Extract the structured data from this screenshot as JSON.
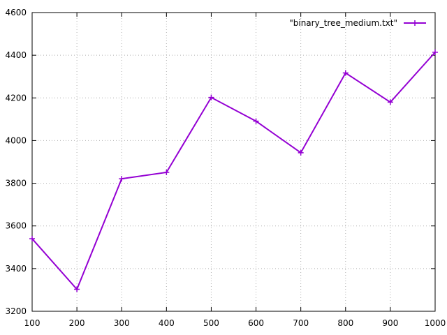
{
  "chart_data": {
    "type": "line",
    "title": "",
    "xlabel": "",
    "ylabel": "",
    "xlim": [
      100,
      1000
    ],
    "ylim": [
      3200,
      4600
    ],
    "x_ticks": [
      100,
      200,
      300,
      400,
      500,
      600,
      700,
      800,
      900,
      1000
    ],
    "y_ticks": [
      3200,
      3400,
      3600,
      3800,
      4000,
      4200,
      4400,
      4600
    ],
    "grid": true,
    "legend_position": "top-right",
    "series": [
      {
        "name": "\"binary_tree_medium.txt\"",
        "color": "#9400d3",
        "marker": "plus",
        "x": [
          100,
          200,
          300,
          400,
          500,
          600,
          700,
          800,
          900,
          1000
        ],
        "y": [
          3540,
          3303,
          3821,
          3851,
          4202,
          4091,
          3943,
          4317,
          4180,
          4414
        ]
      }
    ]
  }
}
